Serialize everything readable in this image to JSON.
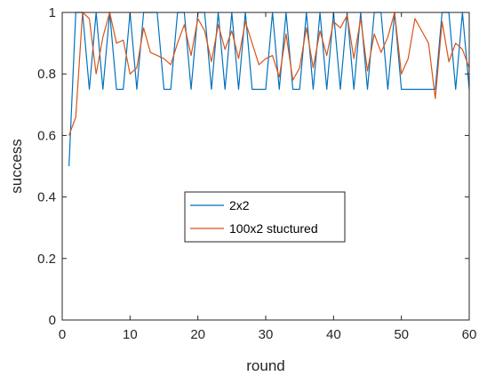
{
  "chart_data": {
    "type": "line",
    "title": "",
    "xlabel": "round",
    "ylabel": "success",
    "xlim": [
      0,
      60
    ],
    "ylim": [
      0,
      1
    ],
    "xticks": [
      "0",
      "10",
      "20",
      "30",
      "40",
      "50",
      "60"
    ],
    "yticks": [
      "0",
      "0.2",
      "0.4",
      "0.6",
      "0.8",
      "1"
    ],
    "grid": false,
    "legend_position": "center",
    "x": [
      1,
      2,
      3,
      4,
      5,
      6,
      7,
      8,
      9,
      10,
      11,
      12,
      13,
      14,
      15,
      16,
      17,
      18,
      19,
      20,
      21,
      22,
      23,
      24,
      25,
      26,
      27,
      28,
      29,
      30,
      31,
      32,
      33,
      34,
      35,
      36,
      37,
      38,
      39,
      40,
      41,
      42,
      43,
      44,
      45,
      46,
      47,
      48,
      49,
      50,
      51,
      52,
      53,
      54,
      55,
      56,
      57,
      58,
      59,
      60
    ],
    "series": [
      {
        "name": "2x2",
        "color": "#0072BD",
        "values": [
          0.5,
          1,
          1,
          0.75,
          1,
          0.75,
          1,
          0.75,
          0.75,
          1,
          0.75,
          1,
          1,
          1,
          0.75,
          0.75,
          1,
          1,
          0.75,
          1,
          1,
          0.75,
          1,
          0.75,
          1,
          0.75,
          1,
          0.75,
          0.75,
          0.75,
          1,
          0.75,
          1,
          0.75,
          0.75,
          1,
          0.75,
          1,
          0.75,
          1,
          0.75,
          1,
          0.75,
          1,
          0.75,
          1,
          1,
          0.75,
          1,
          0.75,
          0.75,
          0.75,
          0.75,
          0.75,
          0.75,
          1,
          1,
          0.75,
          1,
          0.75
        ]
      },
      {
        "name": "100x2 stuctured",
        "color": "#D95319",
        "values": [
          0.6,
          0.66,
          1,
          0.98,
          0.8,
          0.92,
          1,
          0.9,
          0.91,
          0.8,
          0.82,
          0.95,
          0.87,
          0.86,
          0.85,
          0.83,
          0.9,
          0.96,
          0.86,
          0.98,
          0.94,
          0.84,
          0.96,
          0.88,
          0.94,
          0.85,
          0.97,
          0.9,
          0.83,
          0.85,
          0.86,
          0.79,
          0.93,
          0.78,
          0.82,
          0.95,
          0.82,
          0.94,
          0.86,
          0.97,
          0.95,
          0.99,
          0.85,
          0.98,
          0.81,
          0.93,
          0.87,
          0.92,
          1,
          0.8,
          0.85,
          0.98,
          0.94,
          0.9,
          0.72,
          0.97,
          0.84,
          0.9,
          0.88,
          0.82
        ]
      }
    ]
  }
}
